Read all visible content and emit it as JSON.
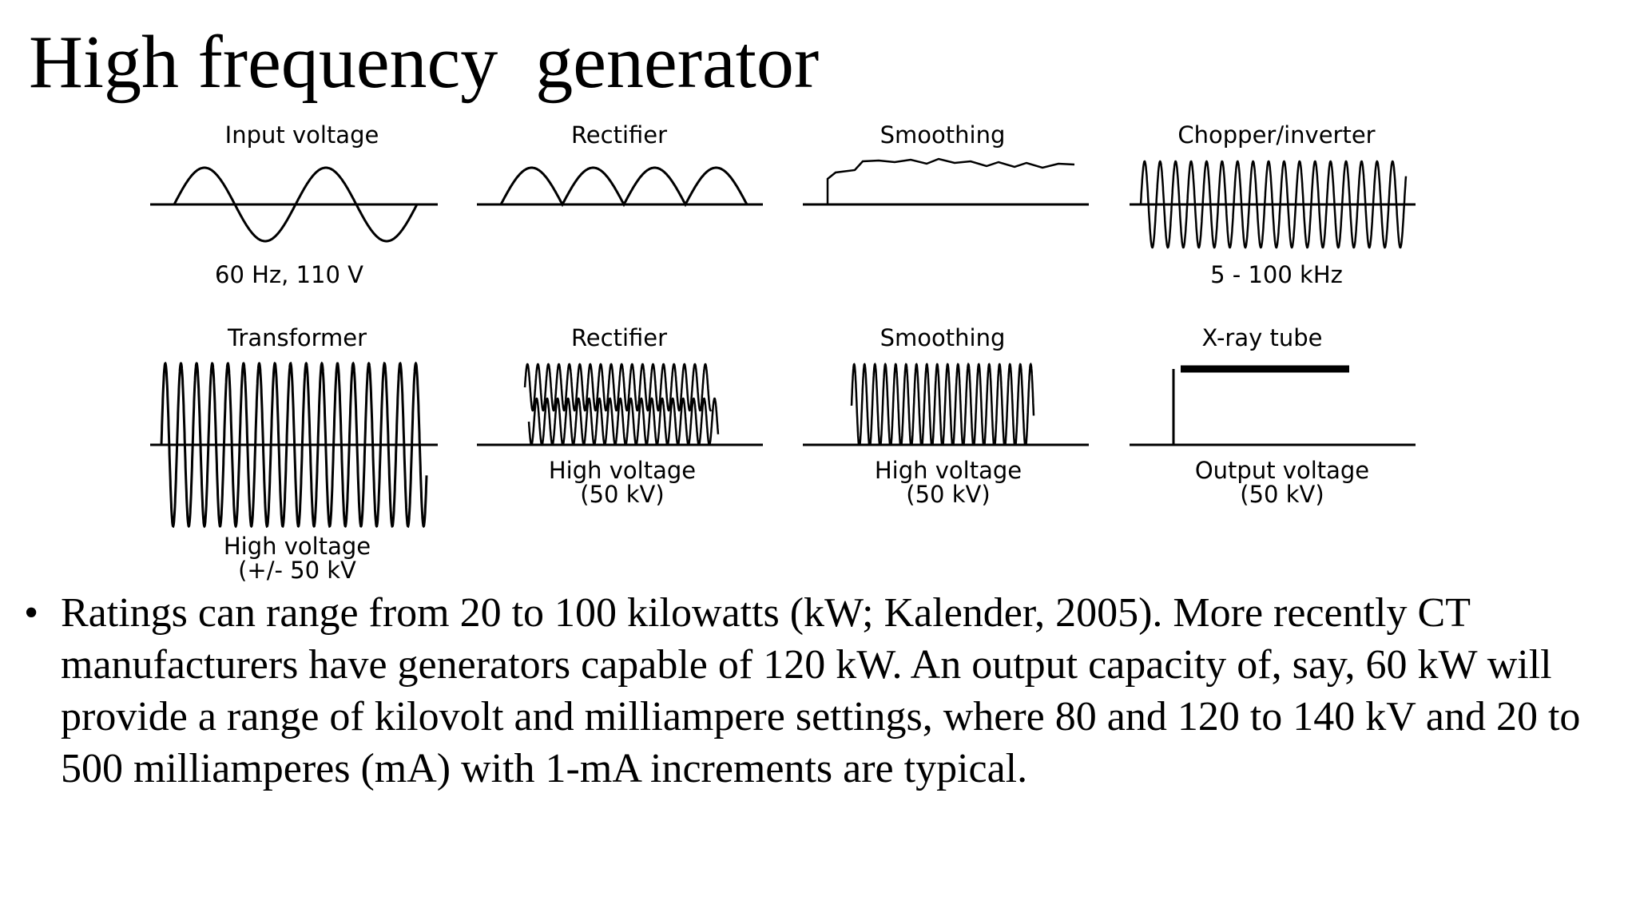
{
  "slide": {
    "title": "High frequency  generator"
  },
  "diagram": {
    "stages": [
      {
        "label": "Input voltage",
        "caption": [
          "60 Hz, 110 V"
        ]
      },
      {
        "label": "Rectifier",
        "caption": []
      },
      {
        "label": "Smoothing",
        "caption": []
      },
      {
        "label": "Chopper/inverter",
        "caption": [
          "5 - 100 kHz"
        ]
      },
      {
        "label": "Transformer",
        "caption": [
          "High voltage",
          "(+/- 50 kV"
        ]
      },
      {
        "label": "Rectifier",
        "caption": [
          "High voltage",
          "(50 kV)"
        ]
      },
      {
        "label": "Smoothing",
        "caption": [
          "High voltage",
          "(50 kV)"
        ]
      },
      {
        "label": "X-ray tube",
        "caption": [
          "Output voltage",
          "(50 kV)"
        ]
      }
    ]
  },
  "bullets": [
    "Ratings can range from 20 to 100 kilowatts (kW; Kalender, 2005). More recently CT manufacturers have generators capable of 120 kW. An output capacity of, say, 60 kW will provide a range of kilovolt and milliampere settings, where 80 and 120 to 140 kV and 20 to 500 milliamperes (mA) with 1-mA increments are typical."
  ],
  "bullet_symbol": "•"
}
